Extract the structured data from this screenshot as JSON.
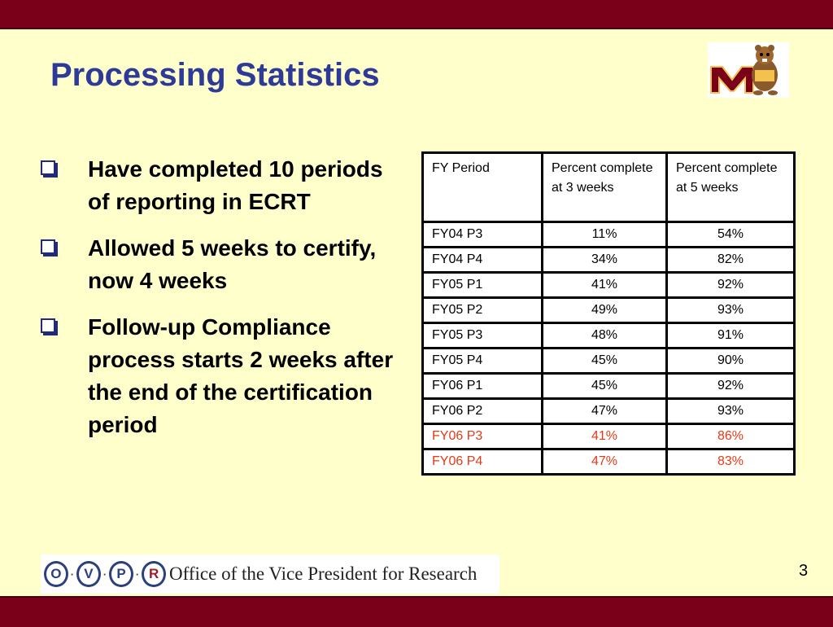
{
  "slide": {
    "title": "Processing Statistics",
    "page_number": "3"
  },
  "colors": {
    "band": "#7A0019",
    "background": "#FFFFCC",
    "title": "#2E3A97",
    "highlight_row": "#E63A15"
  },
  "bullets": [
    "Have completed 10 periods of reporting in ECRT",
    "Allowed 5 weeks to certify, now 4 weeks",
    "Follow-up Compliance process starts 2 weeks after the end of the certification period"
  ],
  "table": {
    "headers": [
      "FY Period",
      "Percent complete at 3 weeks",
      "Percent complete at 5 weeks"
    ],
    "rows": [
      [
        "FY04 P3",
        "11%",
        "54%"
      ],
      [
        "FY04 P4",
        "34%",
        "82%"
      ],
      [
        "FY05 P1",
        "41%",
        "92%"
      ],
      [
        "FY05 P2",
        "49%",
        "93%"
      ],
      [
        "FY05 P3",
        "48%",
        "91%"
      ],
      [
        "FY05 P4",
        "45%",
        "90%"
      ],
      [
        "FY06 P1",
        "45%",
        "92%"
      ],
      [
        "FY06 P2",
        "47%",
        "93%"
      ],
      [
        "FY06 P3",
        "41%",
        "86%"
      ],
      [
        "FY06 P4",
        "47%",
        "83%"
      ]
    ]
  },
  "footer": {
    "logo_letters": [
      "O",
      "V",
      "P",
      "R"
    ],
    "office_text": "Office of the Vice President for Research"
  },
  "icons": {
    "bullet": "checkbox-bullet-icon",
    "mascot": "gopher-mascot-logo"
  }
}
